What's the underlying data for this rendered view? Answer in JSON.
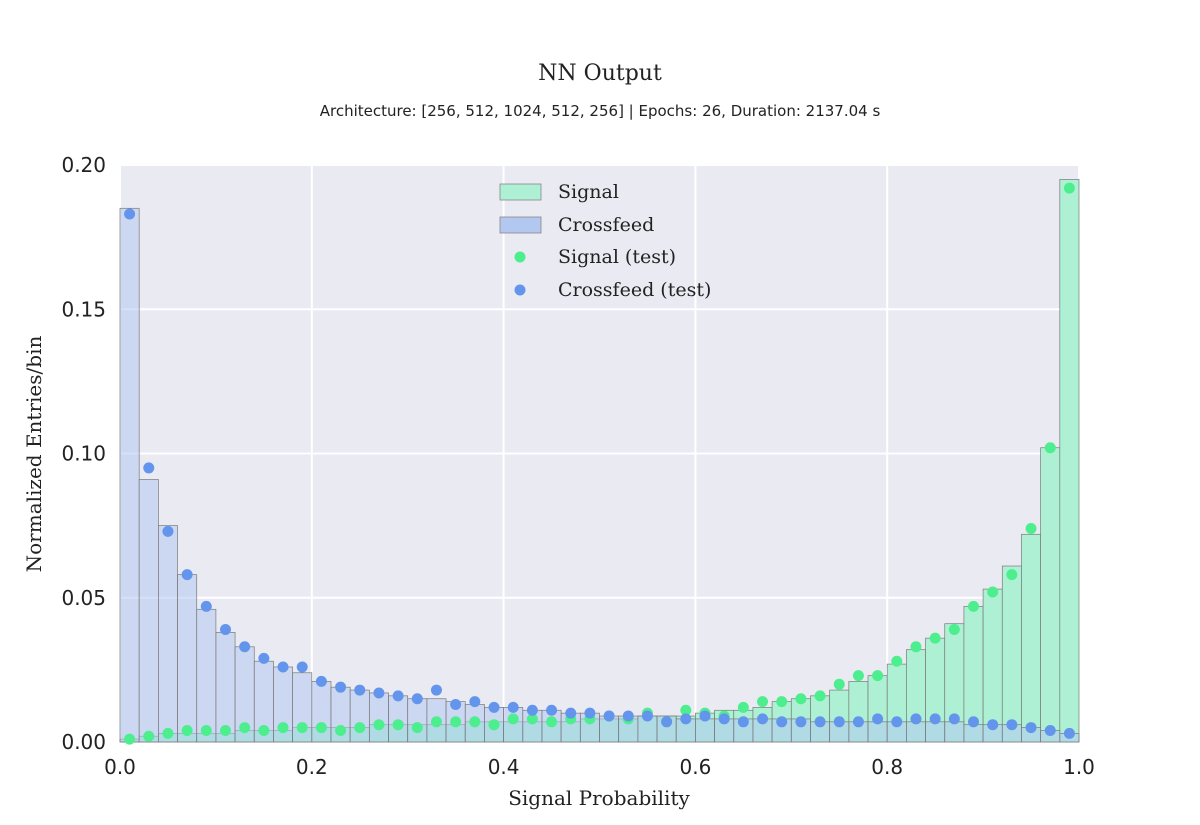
{
  "chart_data": {
    "type": "bar",
    "title": "NN Output",
    "subtitle": "Architecture: [256, 512, 1024, 512, 256] | Epochs: 26, Duration: 2137.04 s",
    "xlabel": "Signal Probability",
    "ylabel": "Normalized Entries/bin",
    "xlim": [
      0.0,
      1.0
    ],
    "ylim": [
      0.0,
      0.2
    ],
    "x_ticks": [
      "0.0",
      "0.2",
      "0.4",
      "0.6",
      "0.8",
      "1.0"
    ],
    "y_ticks": [
      "0.00",
      "0.05",
      "0.10",
      "0.15",
      "0.20"
    ],
    "bin_width": 0.02,
    "bin_centers": [
      0.01,
      0.03,
      0.05,
      0.07,
      0.09,
      0.11,
      0.13,
      0.15,
      0.17,
      0.19,
      0.21,
      0.23,
      0.25,
      0.27,
      0.29,
      0.31,
      0.33,
      0.35,
      0.37,
      0.39,
      0.41,
      0.43,
      0.45,
      0.47,
      0.49,
      0.51,
      0.53,
      0.55,
      0.57,
      0.59,
      0.61,
      0.63,
      0.65,
      0.67,
      0.69,
      0.71,
      0.73,
      0.75,
      0.77,
      0.79,
      0.81,
      0.83,
      0.85,
      0.87,
      0.89,
      0.91,
      0.93,
      0.95,
      0.97,
      0.99
    ],
    "grid": true,
    "legend_position": "top-center",
    "series": [
      {
        "name": "Signal",
        "kind": "histogram",
        "color": "#aef0d4",
        "values": [
          0.001,
          0.002,
          0.003,
          0.003,
          0.003,
          0.003,
          0.004,
          0.004,
          0.004,
          0.005,
          0.005,
          0.005,
          0.005,
          0.006,
          0.006,
          0.006,
          0.006,
          0.006,
          0.007,
          0.007,
          0.007,
          0.007,
          0.007,
          0.007,
          0.008,
          0.008,
          0.008,
          0.009,
          0.009,
          0.009,
          0.01,
          0.011,
          0.011,
          0.012,
          0.014,
          0.015,
          0.016,
          0.018,
          0.021,
          0.023,
          0.027,
          0.032,
          0.036,
          0.041,
          0.047,
          0.053,
          0.061,
          0.072,
          0.102,
          0.195
        ]
      },
      {
        "name": "Crossfeed",
        "kind": "histogram",
        "color": "#b3c8f0",
        "values": [
          0.185,
          0.091,
          0.075,
          0.058,
          0.046,
          0.038,
          0.033,
          0.028,
          0.026,
          0.024,
          0.021,
          0.019,
          0.018,
          0.017,
          0.016,
          0.015,
          0.015,
          0.014,
          0.013,
          0.012,
          0.012,
          0.011,
          0.011,
          0.01,
          0.01,
          0.009,
          0.009,
          0.009,
          0.009,
          0.008,
          0.008,
          0.008,
          0.008,
          0.008,
          0.008,
          0.008,
          0.007,
          0.007,
          0.007,
          0.007,
          0.007,
          0.007,
          0.007,
          0.007,
          0.006,
          0.006,
          0.006,
          0.005,
          0.004,
          0.003
        ]
      },
      {
        "name": "Signal (test)",
        "kind": "points",
        "color": "#4dee8e",
        "values": [
          0.001,
          0.002,
          0.003,
          0.004,
          0.004,
          0.004,
          0.005,
          0.004,
          0.005,
          0.005,
          0.005,
          0.004,
          0.005,
          0.006,
          0.006,
          0.005,
          0.007,
          0.007,
          0.007,
          0.006,
          0.008,
          0.008,
          0.007,
          0.008,
          0.008,
          0.009,
          0.008,
          0.01,
          0.007,
          0.011,
          0.01,
          0.009,
          0.012,
          0.014,
          0.014,
          0.015,
          0.016,
          0.02,
          0.023,
          0.023,
          0.028,
          0.033,
          0.036,
          0.039,
          0.047,
          0.052,
          0.058,
          0.074,
          0.102,
          0.192
        ]
      },
      {
        "name": "Crossfeed (test)",
        "kind": "points",
        "color": "#6495ed",
        "values": [
          0.183,
          0.095,
          0.073,
          0.058,
          0.047,
          0.039,
          0.033,
          0.029,
          0.026,
          0.026,
          0.021,
          0.019,
          0.018,
          0.017,
          0.016,
          0.015,
          0.018,
          0.013,
          0.014,
          0.012,
          0.012,
          0.011,
          0.011,
          0.01,
          0.01,
          0.009,
          0.009,
          0.009,
          0.007,
          0.008,
          0.009,
          0.008,
          0.007,
          0.008,
          0.007,
          0.007,
          0.007,
          0.007,
          0.007,
          0.008,
          0.007,
          0.008,
          0.008,
          0.008,
          0.007,
          0.006,
          0.006,
          0.005,
          0.004,
          0.003
        ]
      }
    ]
  }
}
